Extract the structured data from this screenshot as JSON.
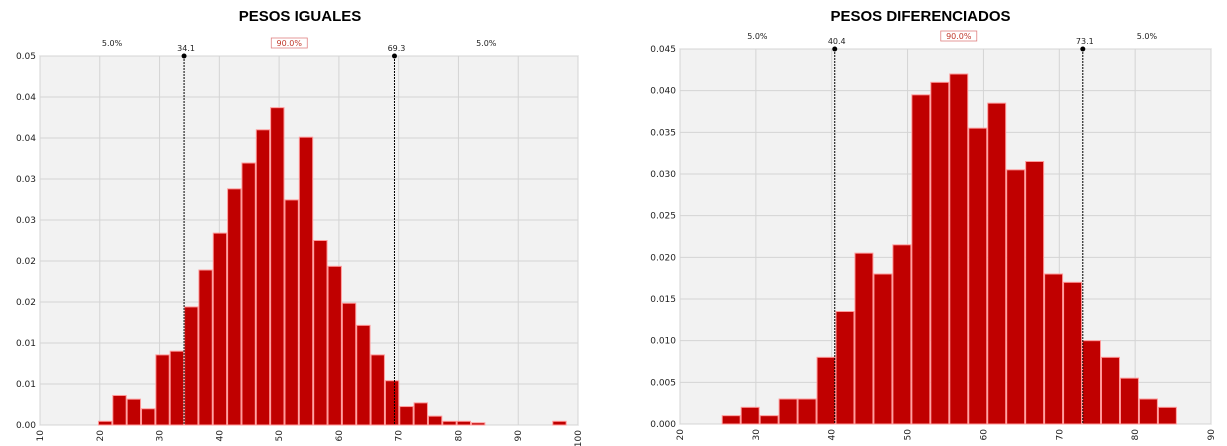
{
  "colors": {
    "bar": "#c00000",
    "bar_edge": "#ff9a9a",
    "plot_bg": "#f2f2f2",
    "grid": "#d4d4d4",
    "marker": "#000000"
  },
  "chart_data": [
    {
      "type": "bar",
      "title": "PESOS IGUALES",
      "xlabel": "",
      "ylabel": "",
      "xlim": [
        10,
        100
      ],
      "xticks": [
        "10",
        "20",
        "30",
        "40",
        "50",
        "60",
        "70",
        "80",
        "90",
        "100"
      ],
      "yticks": [
        "0.00",
        "0.01",
        "0.01",
        "0.02",
        "0.02",
        "0.03",
        "0.03",
        "0.04",
        "0.04",
        "0.05"
      ],
      "ylim": [
        0,
        0.05
      ],
      "bin_width": 2.4,
      "bin_starts": [
        19.7,
        22.1,
        24.5,
        26.9,
        29.3,
        31.7,
        34.1,
        36.5,
        38.9,
        41.3,
        43.7,
        46.1,
        48.5,
        50.9,
        53.3,
        55.7,
        58.1,
        60.5,
        62.9,
        65.3,
        67.7,
        70.1,
        72.5,
        74.9,
        77.3,
        79.7,
        82.1,
        95.7
      ],
      "values": [
        0.0005,
        0.004,
        0.0035,
        0.0022,
        0.0095,
        0.01,
        0.016,
        0.021,
        0.026,
        0.032,
        0.0355,
        0.04,
        0.043,
        0.0305,
        0.039,
        0.025,
        0.0215,
        0.0165,
        0.0135,
        0.0095,
        0.006,
        0.0025,
        0.003,
        0.0012,
        0.0005,
        0.0005,
        0.0003,
        0.0005
      ],
      "markers": {
        "left": 34.1,
        "right": 69.3,
        "left_label": "34.1",
        "right_label": "69.3"
      },
      "bands": {
        "left": "5.0%",
        "middle": "90.0%",
        "right": "5.0%"
      }
    },
    {
      "type": "bar",
      "title": "PESOS DIFERENCIADOS",
      "xlabel": "",
      "ylabel": "",
      "xlim": [
        20,
        90
      ],
      "xticks": [
        "20",
        "30",
        "40",
        "50",
        "60",
        "70",
        "80",
        "90"
      ],
      "yticks": [
        "0.000",
        "0.005",
        "0.010",
        "0.015",
        "0.020",
        "0.025",
        "0.030",
        "0.035",
        "0.040",
        "0.045"
      ],
      "ylim": [
        0,
        0.045
      ],
      "bin_width": 2.5,
      "bin_starts": [
        25.5,
        28,
        30.5,
        33,
        35.5,
        38,
        40.5,
        43,
        45.5,
        48,
        50.5,
        53,
        55.5,
        58,
        60.5,
        63,
        65.5,
        68,
        70.5,
        73,
        75.5,
        78,
        80.5,
        83
      ],
      "values": [
        0.001,
        0.002,
        0.001,
        0.003,
        0.003,
        0.008,
        0.0135,
        0.0205,
        0.018,
        0.0215,
        0.0395,
        0.041,
        0.042,
        0.0355,
        0.0385,
        0.0305,
        0.0315,
        0.018,
        0.017,
        0.01,
        0.008,
        0.0055,
        0.003,
        0.002
      ],
      "markers": {
        "left": 40.4,
        "right": 73.1,
        "left_label": "40.4",
        "right_label": "73.1"
      },
      "bands": {
        "left": "5.0%",
        "middle": "90.0%",
        "right": "5.0%"
      }
    }
  ]
}
